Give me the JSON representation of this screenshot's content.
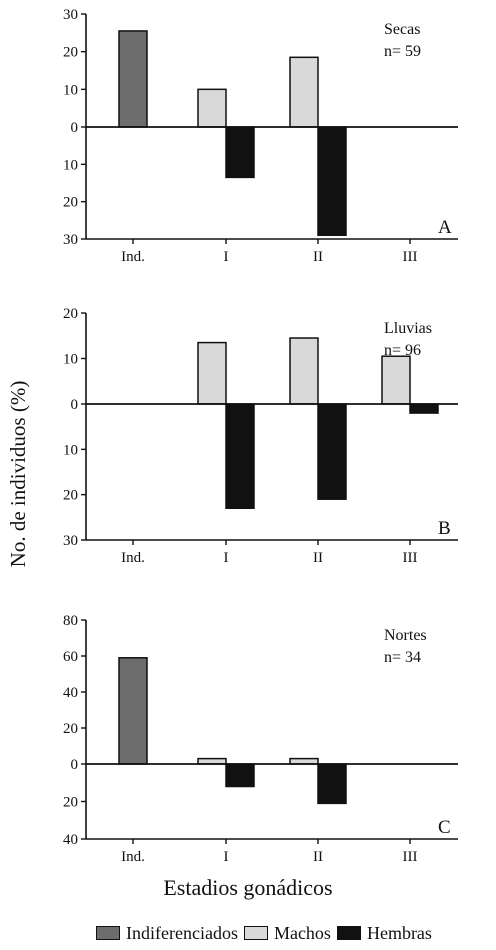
{
  "figure": {
    "ylabel": "No. de individuos (%)",
    "xlabel": "Estadios gonádicos",
    "colors": {
      "Indiferenciados": "#6d6d6d",
      "Machos": "#d9d9d9",
      "Hembras": "#111111"
    },
    "legend": [
      "Indiferenciados",
      "Machos",
      "Hembras"
    ]
  },
  "chart_data": [
    {
      "type": "bar",
      "panel": "A",
      "annotation_title": "Secas",
      "annotation_n": "n= 59",
      "categories": [
        "Ind.",
        "I",
        "II",
        "III"
      ],
      "ylim_up": 30,
      "ylim_down": 30,
      "yticks_up": [
        30,
        20,
        10,
        0
      ],
      "yticks_down": [
        10,
        20,
        30
      ],
      "series": [
        {
          "name": "Indiferenciados",
          "direction": "up",
          "values": [
            25.5,
            null,
            null,
            null
          ]
        },
        {
          "name": "Machos",
          "direction": "up",
          "values": [
            null,
            10,
            18.5,
            null
          ]
        },
        {
          "name": "Hembras",
          "direction": "down",
          "values": [
            null,
            13.5,
            29,
            null
          ]
        }
      ]
    },
    {
      "type": "bar",
      "panel": "B",
      "annotation_title": "Lluvias",
      "annotation_n": "n= 96",
      "categories": [
        "Ind.",
        "I",
        "II",
        "III"
      ],
      "ylim_up": 20,
      "ylim_down": 30,
      "yticks_up": [
        20,
        10,
        0
      ],
      "yticks_down": [
        10,
        20,
        30
      ],
      "series": [
        {
          "name": "Indiferenciados",
          "direction": "up",
          "values": [
            null,
            null,
            null,
            null
          ]
        },
        {
          "name": "Machos",
          "direction": "up",
          "values": [
            null,
            13.5,
            14.5,
            10.5
          ]
        },
        {
          "name": "Hembras",
          "direction": "down",
          "values": [
            null,
            23,
            21,
            2
          ]
        }
      ]
    },
    {
      "type": "bar",
      "panel": "C",
      "annotation_title": "Nortes",
      "annotation_n": "n= 34",
      "categories": [
        "Ind.",
        "I",
        "II",
        "III"
      ],
      "ylim_up": 80,
      "ylim_down": 40,
      "yticks_up": [
        80,
        60,
        40,
        20,
        0
      ],
      "yticks_down": [
        20,
        40
      ],
      "series": [
        {
          "name": "Indiferenciados",
          "direction": "up",
          "values": [
            59,
            null,
            null,
            null
          ]
        },
        {
          "name": "Machos",
          "direction": "up",
          "values": [
            null,
            3,
            3,
            null
          ]
        },
        {
          "name": "Hembras",
          "direction": "down",
          "values": [
            null,
            12,
            21,
            null
          ]
        }
      ]
    }
  ]
}
